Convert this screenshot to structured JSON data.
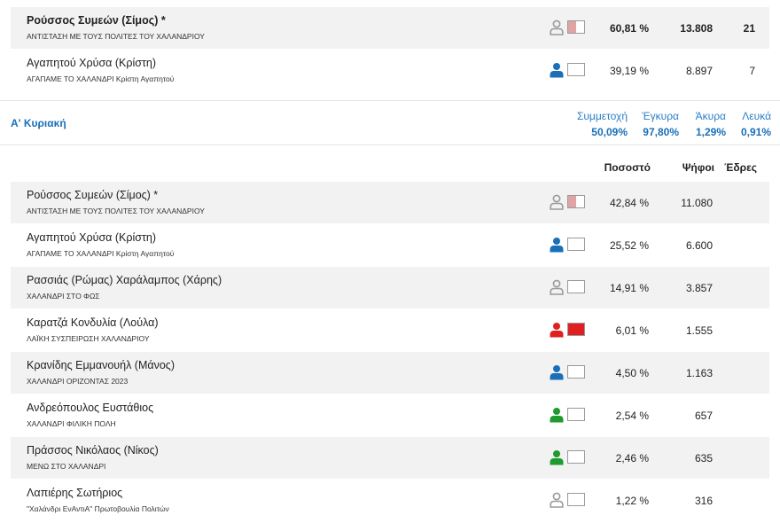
{
  "top_rows": [
    {
      "name": "Ρούσσος Συμεών (Σίμος) *",
      "party": "ΑΝΤΙΣΤΑΣΗ ΜΕ ΤΟΥΣ ΠΟΛΙΤΕΣ ΤΟΥ ΧΑΛΑΝΔΡΙΟΥ",
      "percent": "60,81 %",
      "votes": "13.808",
      "seats": "21",
      "icon_color": "#9a9a9a",
      "box_color": "#e0a4a4",
      "box_fill": 0.5,
      "winner": true
    },
    {
      "name": "Αγαπητού Χρύσα (Κρίστη)",
      "party": "ΑΓΑΠΑΜΕ ΤΟ ΧΑΛΑΝΔΡΙ Κρίστη Αγαπητού",
      "percent": "39,19 %",
      "votes": "8.897",
      "seats": "7",
      "icon_color": "#1a6fb8",
      "box_color": "#ffffff",
      "box_fill": 0,
      "winner": false
    }
  ],
  "round": {
    "title": "Α' Κυριακή",
    "stats": [
      {
        "label": "Συμμετοχή",
        "value": "50,09%"
      },
      {
        "label": "Έγκυρα",
        "value": "97,80%"
      },
      {
        "label": "Άκυρα",
        "value": "1,29%"
      },
      {
        "label": "Λευκά",
        "value": "0,91%"
      }
    ],
    "columns": {
      "percent": "Ποσοστό",
      "votes": "Ψήφοι",
      "seats": "Έδρες"
    }
  },
  "rows": [
    {
      "name": "Ρούσσος Συμεών (Σίμος) *",
      "party": "ΑΝΤΙΣΤΑΣΗ ΜΕ ΤΟΥΣ ΠΟΛΙΤΕΣ ΤΟΥ ΧΑΛΑΝΔΡΙΟΥ",
      "percent": "42,84 %",
      "votes": "11.080",
      "icon_color": "#9a9a9a",
      "box_color": "#e0a4a4",
      "box_fill": 0.5
    },
    {
      "name": "Αγαπητού Χρύσα (Κρίστη)",
      "party": "ΑΓΑΠΑΜΕ ΤΟ ΧΑΛΑΝΔΡΙ Κρίστη Αγαπητού",
      "percent": "25,52 %",
      "votes": "6.600",
      "icon_color": "#1a6fb8",
      "box_color": "#ffffff",
      "box_fill": 0
    },
    {
      "name": "Ρασσιάς (Ρώμας) Χαράλαμπος (Χάρης)",
      "party": "ΧΑΛΑΝΔΡΙ ΣΤΟ ΦΩΣ",
      "percent": "14,91 %",
      "votes": "3.857",
      "icon_color": "#9a9a9a",
      "box_color": "#ffffff",
      "box_fill": 0
    },
    {
      "name": "Καρατζά Κονδυλία (Λούλα)",
      "party": "ΛΑΪΚΗ ΣΥΣΠΕΙΡΩΣΗ ΧΑΛΑΝΔΡΙΟΥ",
      "percent": "6,01 %",
      "votes": "1.555",
      "icon_color": "#e02020",
      "box_color": "#e02020",
      "box_fill": 1
    },
    {
      "name": "Κρανίδης Εμμανουήλ (Μάνος)",
      "party": "ΧΑΛΑΝΔΡΙ ΟΡΙΖΟΝΤΑΣ 2023",
      "percent": "4,50 %",
      "votes": "1.163",
      "icon_color": "#1a6fb8",
      "box_color": "#ffffff",
      "box_fill": 0
    },
    {
      "name": "Ανδρεόπουλος Ευστάθιος",
      "party": "ΧΑΛΑΝΔΡΙ ΦΙΛΙΚΗ ΠΟΛΗ",
      "percent": "2,54 %",
      "votes": "657",
      "icon_color": "#1f9a2e",
      "box_color": "#ffffff",
      "box_fill": 0
    },
    {
      "name": "Πράσσος Νικόλαος (Νίκος)",
      "party": "ΜΕΝΩ ΣΤΟ ΧΑΛΑΝΔΡΙ",
      "percent": "2,46 %",
      "votes": "635",
      "icon_color": "#1f9a2e",
      "box_color": "#ffffff",
      "box_fill": 0
    },
    {
      "name": "Λαπιέρης Σωτήριος",
      "party": "\"Χαλάνδρι ΕνΑντιΑ\" Πρωτοβουλία Πολιτών",
      "percent": "1,22 %",
      "votes": "316",
      "icon_color": "#9a9a9a",
      "box_color": "#ffffff",
      "box_fill": 0
    }
  ]
}
